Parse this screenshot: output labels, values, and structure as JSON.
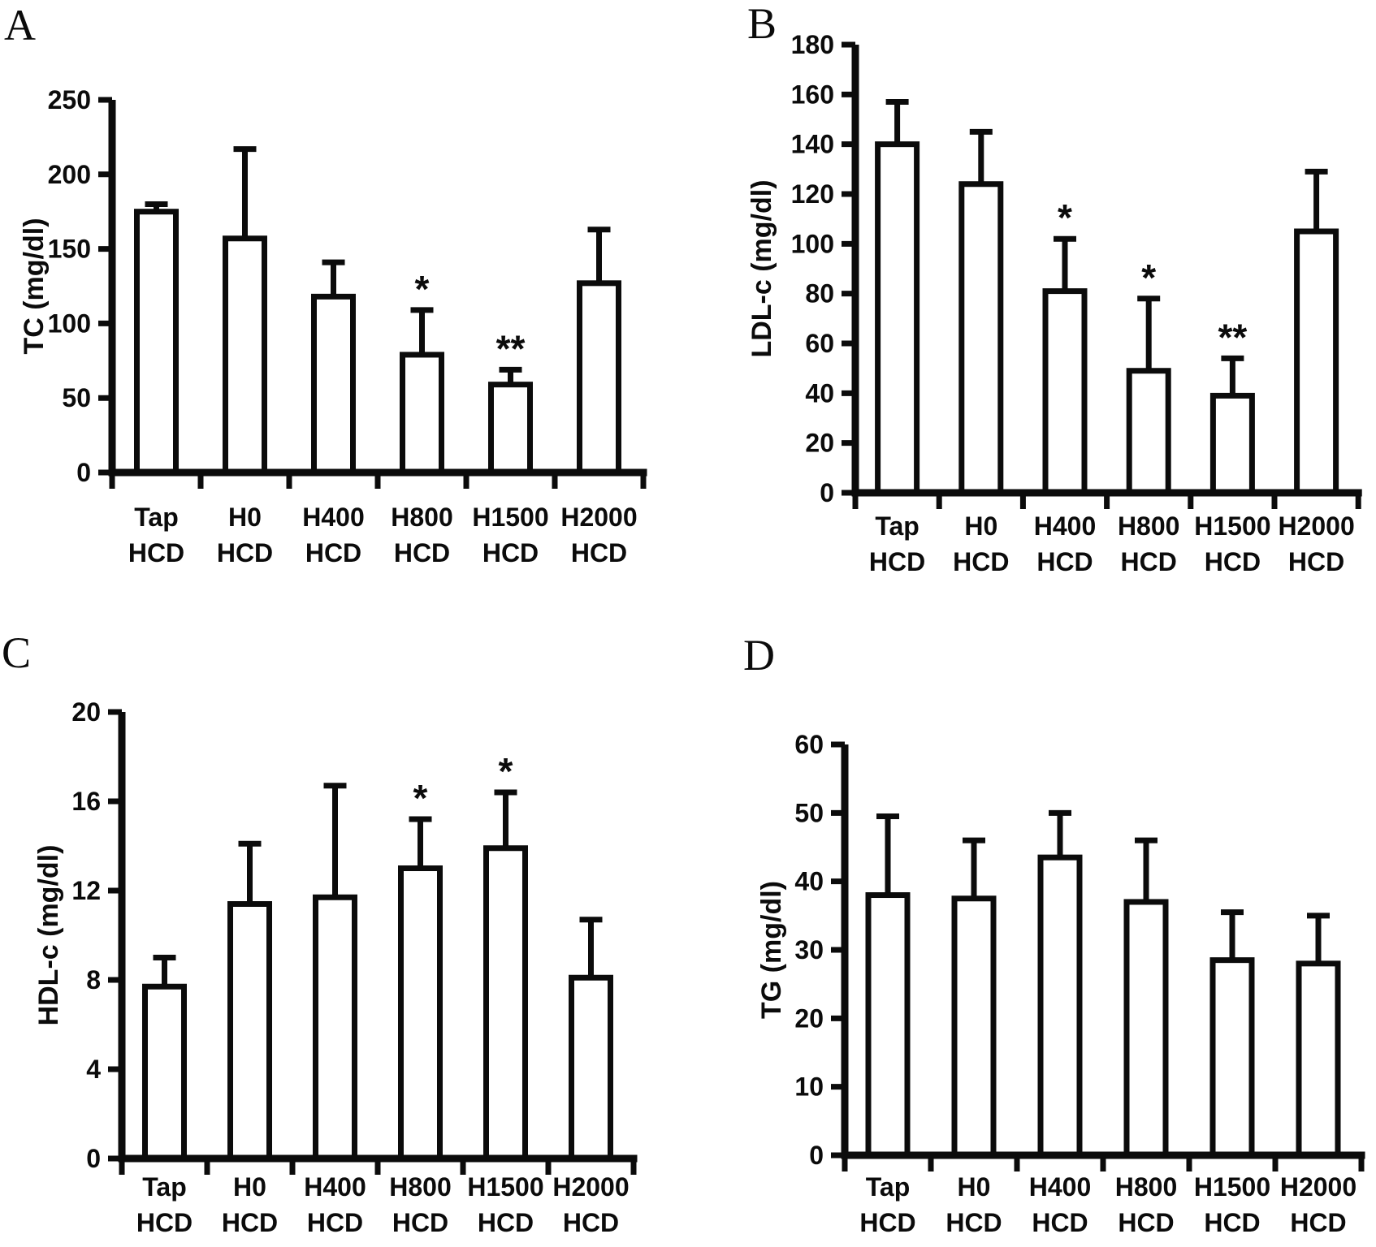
{
  "figure": {
    "description": "Four-panel bar graph of serum lipid levels with SD error bars and significance marks",
    "colors": {
      "background": "#ffffff",
      "ink": "#0b0b0b",
      "bar_fill": "#ffffff"
    }
  },
  "chart_data": [
    {
      "type": "bar",
      "panel": "A",
      "ylabel": "TC (mg/dl)",
      "xlabel": "",
      "categories": [
        "Tap HCD",
        "H0 HCD",
        "H400 HCD",
        "H800 HCD",
        "H1500 HCD",
        "H2000 HCD"
      ],
      "values": [
        175,
        157,
        118,
        79,
        59,
        127
      ],
      "errors_upper": [
        5,
        60,
        23,
        30,
        10,
        36
      ],
      "significance": [
        "",
        "",
        "",
        "*",
        "**",
        ""
      ],
      "ylim": [
        0,
        250
      ],
      "ytick_interval": 50,
      "grid": false,
      "legend": "none"
    },
    {
      "type": "bar",
      "panel": "B",
      "ylabel": "LDL-c (mg/dl)",
      "xlabel": "",
      "categories": [
        "Tap HCD",
        "H0 HCD",
        "H400 HCD",
        "H800 HCD",
        "H1500 HCD",
        "H2000 HCD"
      ],
      "values": [
        140,
        124,
        81,
        49,
        39,
        105
      ],
      "errors_upper": [
        17,
        21,
        21,
        29,
        15,
        24
      ],
      "significance": [
        "",
        "",
        "*",
        "*",
        "**",
        ""
      ],
      "ylim": [
        0,
        180
      ],
      "ytick_interval": 20,
      "grid": false,
      "legend": "none"
    },
    {
      "type": "bar",
      "panel": "C",
      "ylabel": "HDL-c (mg/dl)",
      "xlabel": "",
      "categories": [
        "Tap HCD",
        "H0 HCD",
        "H400 HCD",
        "H800 HCD",
        "H1500 HCD",
        "H2000 HCD"
      ],
      "values": [
        7.7,
        11.4,
        11.7,
        13.0,
        13.9,
        8.1
      ],
      "errors_upper": [
        1.3,
        2.7,
        5.0,
        2.2,
        2.5,
        2.6
      ],
      "significance": [
        "",
        "",
        "",
        "*",
        "*",
        ""
      ],
      "ylim": [
        0,
        20
      ],
      "ytick_interval": 4,
      "grid": false,
      "legend": "none"
    },
    {
      "type": "bar",
      "panel": "D",
      "ylabel": "TG (mg/dl)",
      "xlabel": "",
      "categories": [
        "Tap HCD",
        "H0 HCD",
        "H400 HCD",
        "H800 HCD",
        "H1500 HCD",
        "H2000 HCD"
      ],
      "values": [
        38,
        37.5,
        43.5,
        37,
        28.5,
        28
      ],
      "errors_upper": [
        11.5,
        8.5,
        6.5,
        9,
        7,
        7
      ],
      "significance": [
        "",
        "",
        "",
        "",
        "",
        ""
      ],
      "ylim": [
        0,
        60
      ],
      "ytick_interval": 10,
      "grid": false,
      "legend": "none"
    }
  ]
}
